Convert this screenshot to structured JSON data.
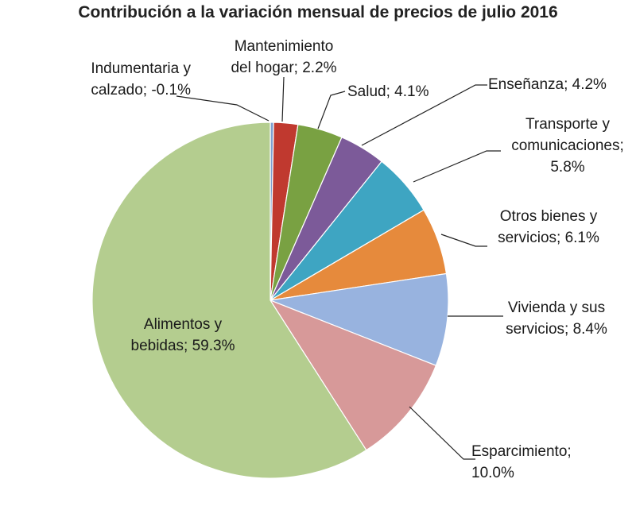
{
  "chart_data": {
    "type": "pie",
    "title": "Contribución a la variación mensual de precios de julio 2016",
    "slices": [
      {
        "label_lines": [
          "Alimentos y",
          "bebidas; 59.3%"
        ],
        "name": "Alimentos y bebidas",
        "value": 59.3,
        "color": "#b4cd8f"
      },
      {
        "label_lines": [
          "Indumentaria y",
          "calzado; -0.1%"
        ],
        "name": "Indumentaria y calzado",
        "value": -0.1,
        "color": "#7f9fd1"
      },
      {
        "label_lines": [
          "Mantenimiento",
          "del hogar; 2.2%"
        ],
        "name": "Mantenimiento del hogar",
        "value": 2.2,
        "color": "#c0392f"
      },
      {
        "label_lines": [
          "Salud; 4.1%"
        ],
        "name": "Salud",
        "value": 4.1,
        "color": "#79a142"
      },
      {
        "label_lines": [
          "Enseñanza; 4.2%"
        ],
        "name": "Enseñanza",
        "value": 4.2,
        "color": "#7c5a99"
      },
      {
        "label_lines": [
          "Transporte y",
          "comunicaciones;",
          "5.8%"
        ],
        "name": "Transporte y comunicaciones",
        "value": 5.8,
        "color": "#3ea5c2"
      },
      {
        "label_lines": [
          "Otros bienes y",
          "servicios; 6.1%"
        ],
        "name": "Otros bienes y servicios",
        "value": 6.1,
        "color": "#e68a3c"
      },
      {
        "label_lines": [
          "Vivienda y sus",
          "servicios; 8.4%"
        ],
        "name": "Vivienda y sus servicios",
        "value": 8.4,
        "color": "#98b3df"
      },
      {
        "label_lines": [
          "Esparcimiento;",
          "10.0%"
        ],
        "name": "Esparcimiento",
        "value": 10.0,
        "color": "#d79999"
      }
    ]
  }
}
